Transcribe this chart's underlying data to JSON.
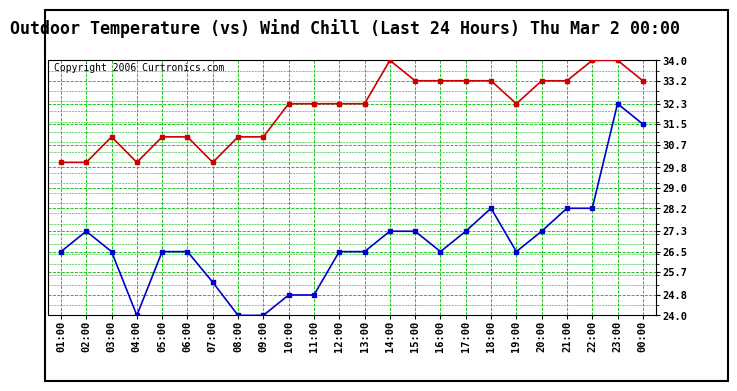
{
  "title": "Outdoor Temperature (vs) Wind Chill (Last 24 Hours) Thu Mar 2 00:00",
  "copyright_text": "Copyright 2006 Curtronics.com",
  "x_labels": [
    "01:00",
    "02:00",
    "03:00",
    "04:00",
    "05:00",
    "06:00",
    "07:00",
    "08:00",
    "09:00",
    "10:00",
    "11:00",
    "12:00",
    "13:00",
    "14:00",
    "15:00",
    "16:00",
    "17:00",
    "18:00",
    "19:00",
    "20:00",
    "21:00",
    "22:00",
    "23:00",
    "00:00"
  ],
  "temp_values": [
    30.0,
    30.0,
    31.0,
    30.0,
    31.0,
    31.0,
    30.0,
    31.0,
    31.0,
    32.3,
    32.3,
    32.3,
    32.3,
    34.0,
    33.2,
    33.2,
    33.2,
    33.2,
    32.3,
    33.2,
    33.2,
    34.0,
    34.0,
    33.2
  ],
  "windchill_values": [
    26.5,
    27.3,
    26.5,
    24.0,
    26.5,
    26.5,
    25.3,
    24.0,
    24.0,
    24.8,
    24.8,
    26.5,
    26.5,
    27.3,
    27.3,
    26.5,
    27.3,
    28.2,
    26.5,
    27.3,
    28.2,
    28.2,
    32.3,
    31.5
  ],
  "temp_color": "#cc0000",
  "windchill_color": "#0000cc",
  "bg_color": "#ffffff",
  "plot_bg_color": "#ffffff",
  "grid_color": "#00bb00",
  "y_min": 24.0,
  "y_max": 34.0,
  "y_ticks": [
    24.0,
    24.8,
    25.7,
    26.5,
    27.3,
    28.2,
    29.0,
    29.8,
    30.7,
    31.5,
    32.3,
    33.2,
    34.0
  ],
  "title_fontsize": 12,
  "copyright_fontsize": 7,
  "tick_fontsize": 7.5,
  "marker_size": 3,
  "line_width": 1.2
}
